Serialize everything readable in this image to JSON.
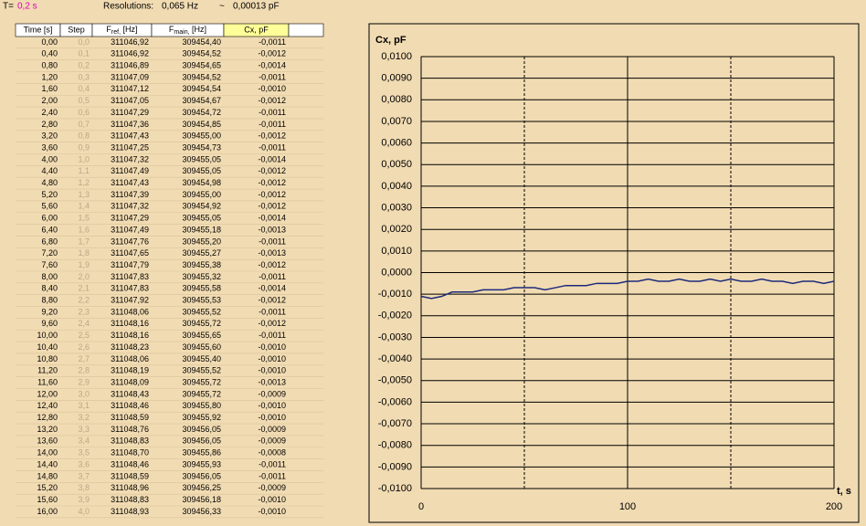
{
  "header": {
    "t_label": "T=",
    "t_value": "0,2 s",
    "resolutions_label": "Resolutions:",
    "res_hz": "0,065 Hz",
    "tilde": "~",
    "res_pf": "0,00013 pF"
  },
  "table": {
    "columns": [
      "Time [s]",
      "Step",
      {
        "base": "F",
        "sub": "ref,",
        "unit": " [Hz]"
      },
      {
        "base": "F",
        "sub": "main,",
        "unit": " [Hz]"
      },
      "Cx, pF"
    ],
    "rows": [
      [
        "0,00",
        "0,0",
        "311046,92",
        "309454,40",
        "-0,0011"
      ],
      [
        "0,40",
        "0,1",
        "311046,92",
        "309454,52",
        "-0,0012"
      ],
      [
        "0,80",
        "0,2",
        "311046,89",
        "309454,65",
        "-0,0014"
      ],
      [
        "1,20",
        "0,3",
        "311047,09",
        "309454,52",
        "-0,0011"
      ],
      [
        "1,60",
        "0,4",
        "311047,12",
        "309454,54",
        "-0,0010"
      ],
      [
        "2,00",
        "0,5",
        "311047,05",
        "309454,67",
        "-0,0012"
      ],
      [
        "2,40",
        "0,6",
        "311047,29",
        "309454,72",
        "-0,0011"
      ],
      [
        "2,80",
        "0,7",
        "311047,36",
        "309454,85",
        "-0,0011"
      ],
      [
        "3,20",
        "0,8",
        "311047,43",
        "309455,00",
        "-0,0012"
      ],
      [
        "3,60",
        "0,9",
        "311047,25",
        "309454,73",
        "-0,0011"
      ],
      [
        "4,00",
        "1,0",
        "311047,32",
        "309455,05",
        "-0,0014"
      ],
      [
        "4,40",
        "1,1",
        "311047,49",
        "309455,05",
        "-0,0012"
      ],
      [
        "4,80",
        "1,2",
        "311047,43",
        "309454,98",
        "-0,0012"
      ],
      [
        "5,20",
        "1,3",
        "311047,39",
        "309455,00",
        "-0,0012"
      ],
      [
        "5,60",
        "1,4",
        "311047,32",
        "309454,92",
        "-0,0012"
      ],
      [
        "6,00",
        "1,5",
        "311047,29",
        "309455,05",
        "-0,0014"
      ],
      [
        "6,40",
        "1,6",
        "311047,49",
        "309455,18",
        "-0,0013"
      ],
      [
        "6,80",
        "1,7",
        "311047,76",
        "309455,20",
        "-0,0011"
      ],
      [
        "7,20",
        "1,8",
        "311047,65",
        "309455,27",
        "-0,0013"
      ],
      [
        "7,60",
        "1,9",
        "311047,79",
        "309455,38",
        "-0,0012"
      ],
      [
        "8,00",
        "2,0",
        "311047,83",
        "309455,32",
        "-0,0011"
      ],
      [
        "8,40",
        "2,1",
        "311047,83",
        "309455,58",
        "-0,0014"
      ],
      [
        "8,80",
        "2,2",
        "311047,92",
        "309455,53",
        "-0,0012"
      ],
      [
        "9,20",
        "2,3",
        "311048,06",
        "309455,52",
        "-0,0011"
      ],
      [
        "9,60",
        "2,4",
        "311048,16",
        "309455,72",
        "-0,0012"
      ],
      [
        "10,00",
        "2,5",
        "311048,16",
        "309455,65",
        "-0,0011"
      ],
      [
        "10,40",
        "2,6",
        "311048,23",
        "309455,60",
        "-0,0010"
      ],
      [
        "10,80",
        "2,7",
        "311048,06",
        "309455,40",
        "-0,0010"
      ],
      [
        "11,20",
        "2,8",
        "311048,19",
        "309455,52",
        "-0,0010"
      ],
      [
        "11,60",
        "2,9",
        "311048,09",
        "309455,72",
        "-0,0013"
      ],
      [
        "12,00",
        "3,0",
        "311048,43",
        "309455,72",
        "-0,0009"
      ],
      [
        "12,40",
        "3,1",
        "311048,46",
        "309455,80",
        "-0,0010"
      ],
      [
        "12,80",
        "3,2",
        "311048,59",
        "309455,92",
        "-0,0010"
      ],
      [
        "13,20",
        "3,3",
        "311048,76",
        "309456,05",
        "-0,0009"
      ],
      [
        "13,60",
        "3,4",
        "311048,83",
        "309456,05",
        "-0,0009"
      ],
      [
        "14,00",
        "3,5",
        "311048,70",
        "309455,86",
        "-0,0008"
      ],
      [
        "14,40",
        "3,6",
        "311048,46",
        "309455,93",
        "-0,0011"
      ],
      [
        "14,80",
        "3,7",
        "311048,59",
        "309456,05",
        "-0,0011"
      ],
      [
        "15,20",
        "3,8",
        "311048,96",
        "309456,25",
        "-0,0009"
      ],
      [
        "15,60",
        "3,9",
        "311048,83",
        "309456,18",
        "-0,0010"
      ],
      [
        "16,00",
        "4,0",
        "311048,93",
        "309456,33",
        "-0,0010"
      ]
    ]
  },
  "chart_data": {
    "type": "line",
    "ylabel": "Cx, pF",
    "xlabel": "t, s",
    "x": [
      0,
      5,
      10,
      15,
      20,
      25,
      30,
      35,
      40,
      45,
      50,
      55,
      60,
      65,
      70,
      75,
      80,
      85,
      90,
      95,
      100,
      105,
      110,
      115,
      120,
      125,
      130,
      135,
      140,
      145,
      150,
      155,
      160,
      165,
      170,
      175,
      180,
      185,
      190,
      195,
      200
    ],
    "series": [
      {
        "color": "#1c2a7c",
        "values": [
          -0.0011,
          -0.0012,
          -0.0011,
          -0.0009,
          -0.0009,
          -0.0009,
          -0.0008,
          -0.0008,
          -0.0008,
          -0.0007,
          -0.0007,
          -0.0007,
          -0.0008,
          -0.0007,
          -0.0006,
          -0.0006,
          -0.0006,
          -0.0005,
          -0.0005,
          -0.0005,
          -0.0004,
          -0.0004,
          -0.0003,
          -0.0004,
          -0.0004,
          -0.0003,
          -0.0004,
          -0.0004,
          -0.0003,
          -0.0004,
          -0.0003,
          -0.0004,
          -0.0004,
          -0.0003,
          -0.0004,
          -0.0004,
          -0.0005,
          -0.0004,
          -0.0004,
          -0.0005,
          -0.0004
        ]
      }
    ],
    "xlim": [
      0,
      200
    ],
    "ylim": [
      -0.01,
      0.01
    ],
    "xticks": [
      0,
      100,
      200
    ],
    "xminorticks": [
      50,
      150
    ],
    "yticks": [
      {
        "value": 0.01,
        "label": "0,0100"
      },
      {
        "value": 0.009,
        "label": "0,0090"
      },
      {
        "value": 0.008,
        "label": "0,0080"
      },
      {
        "value": 0.007,
        "label": "0,0070"
      },
      {
        "value": 0.006,
        "label": "0,0060"
      },
      {
        "value": 0.005,
        "label": "0,0050"
      },
      {
        "value": 0.004,
        "label": "0,0040"
      },
      {
        "value": 0.003,
        "label": "0,0030"
      },
      {
        "value": 0.002,
        "label": "0,0020"
      },
      {
        "value": 0.001,
        "label": "0,0010"
      },
      {
        "value": 0,
        "label": "0,0000"
      },
      {
        "value": -0.001,
        "label": "-0,0010"
      },
      {
        "value": -0.002,
        "label": "-0,0020"
      },
      {
        "value": -0.003,
        "label": "-0,0030"
      },
      {
        "value": -0.004,
        "label": "-0,0040"
      },
      {
        "value": -0.005,
        "label": "-0,0050"
      },
      {
        "value": -0.006,
        "label": "-0,0060"
      },
      {
        "value": -0.007,
        "label": "-0,0070"
      },
      {
        "value": -0.008,
        "label": "-0,0080"
      },
      {
        "value": -0.009,
        "label": "-0,0090"
      },
      {
        "value": -0.01,
        "label": "-0,0100"
      }
    ],
    "grid": true
  }
}
